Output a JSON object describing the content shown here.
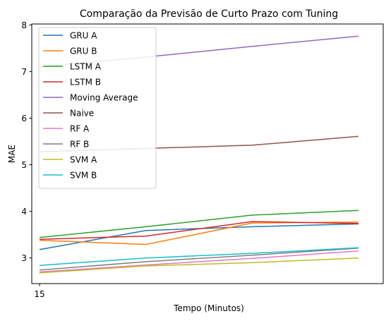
{
  "chart_data": {
    "type": "line",
    "title": "Comparação da Previsão de Curto Prazo com Tuning",
    "xlabel": "Tempo (Minutos)",
    "ylabel": "MAE",
    "x": [
      15,
      30,
      45,
      60
    ],
    "x_ticks": [
      15
    ],
    "x_tick_labels": [
      "15"
    ],
    "xlim": [
      13.9,
      63.5
    ],
    "ylim": [
      2.45,
      8.02
    ],
    "y_ticks": [
      3,
      4,
      5,
      6,
      7,
      8
    ],
    "y_tick_labels": [
      "3",
      "4",
      "5",
      "6",
      "7",
      "8"
    ],
    "grid": false,
    "legend_position": "upper-left",
    "series": [
      {
        "name": "GRU A",
        "color": "#1f77b4",
        "values": [
          3.18,
          3.59,
          3.67,
          3.73
        ]
      },
      {
        "name": "GRU B",
        "color": "#ff7f0e",
        "values": [
          3.38,
          3.29,
          3.75,
          3.77
        ]
      },
      {
        "name": "LSTM A",
        "color": "#2ca02c",
        "values": [
          3.44,
          3.67,
          3.92,
          4.02
        ]
      },
      {
        "name": "LSTM B",
        "color": "#d62728",
        "values": [
          3.4,
          3.47,
          3.78,
          3.74
        ]
      },
      {
        "name": "Moving Average",
        "color": "#9467bd",
        "values": [
          7.1,
          7.31,
          7.54,
          7.76
        ]
      },
      {
        "name": "Naive",
        "color": "#8c564b",
        "values": [
          5.28,
          5.35,
          5.42,
          5.61
        ]
      },
      {
        "name": "RF A",
        "color": "#e377c2",
        "values": [
          2.7,
          2.85,
          2.99,
          3.15
        ]
      },
      {
        "name": "RF B",
        "color": "#7f7f7f",
        "values": [
          2.74,
          2.92,
          3.06,
          3.21
        ]
      },
      {
        "name": "SVM A",
        "color": "#bcbd22",
        "values": [
          2.68,
          2.83,
          2.9,
          3.0
        ]
      },
      {
        "name": "SVM B",
        "color": "#17becf",
        "values": [
          2.84,
          3.0,
          3.1,
          3.22
        ]
      }
    ]
  }
}
